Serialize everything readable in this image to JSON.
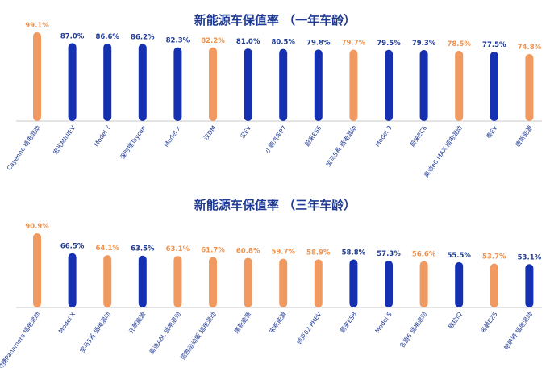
{
  "colors": {
    "blue": "#1530b0",
    "orange": "#f09a62",
    "orange_text": "#f0924e",
    "blue_text": "#1f3a93",
    "axis": "#c8c8c8"
  },
  "chart_data": [
    {
      "type": "bar",
      "title": "新能源车保值率 （一年车龄）",
      "ylim": [
        0,
        100
      ],
      "categories": [
        "Cayenne 插电混动",
        "宏光MINIEV",
        "Model Y",
        "保时捷Taycan",
        "Model X",
        "汉DM",
        "汉EV",
        "小鹏汽车P7",
        "蔚来ES6",
        "宝马5系 插电混动",
        "Model 3",
        "蔚来EC6",
        "奥迪e6 MAX 插电混动",
        "秦EV",
        "唐新能源"
      ],
      "values": [
        99.1,
        87.0,
        86.6,
        86.2,
        82.3,
        82.2,
        81.0,
        80.5,
        79.8,
        79.7,
        79.5,
        79.3,
        78.5,
        77.5,
        74.8
      ],
      "labels": [
        "99.1%",
        "87.0%",
        "86.6%",
        "86.2%",
        "82.3%",
        "82.2%",
        "81.0%",
        "80.5%",
        "79.8%",
        "79.7%",
        "79.5%",
        "79.3%",
        "78.5%",
        "77.5%",
        "74.8%"
      ],
      "bar_colors": [
        "orange",
        "blue",
        "blue",
        "blue",
        "blue",
        "orange",
        "blue",
        "blue",
        "blue",
        "orange",
        "blue",
        "blue",
        "orange",
        "blue",
        "orange"
      ]
    },
    {
      "type": "bar",
      "title": "新能源车保值率 （三年车龄）",
      "ylim": [
        0,
        100
      ],
      "categories": [
        "保时捷Panamera 插电混动",
        "Model X",
        "宝马5系 插电混动",
        "元新能源",
        "奥迪A6L 插电混动",
        "揽胜运动版 插电混动",
        "唐新能源",
        "宋新能源",
        "领克02 PHEV",
        "蔚来ES8",
        "Model S",
        "名爵6 插电混动",
        "欧拉iQ",
        "名爵EZS",
        "帕萨特 插电混动"
      ],
      "values": [
        90.9,
        66.5,
        64.1,
        63.5,
        63.1,
        61.7,
        60.8,
        59.7,
        58.9,
        58.8,
        57.3,
        56.6,
        55.5,
        53.7,
        53.1
      ],
      "labels": [
        "90.9%",
        "66.5%",
        "64.1%",
        "63.5%",
        "63.1%",
        "61.7%",
        "60.8%",
        "59.7%",
        "58.9%",
        "58.8%",
        "57.3%",
        "56.6%",
        "55.5%",
        "53.7%",
        "53.1%"
      ],
      "bar_colors": [
        "orange",
        "blue",
        "orange",
        "blue",
        "orange",
        "orange",
        "orange",
        "orange",
        "orange",
        "blue",
        "blue",
        "orange",
        "blue",
        "orange",
        "blue"
      ]
    }
  ]
}
